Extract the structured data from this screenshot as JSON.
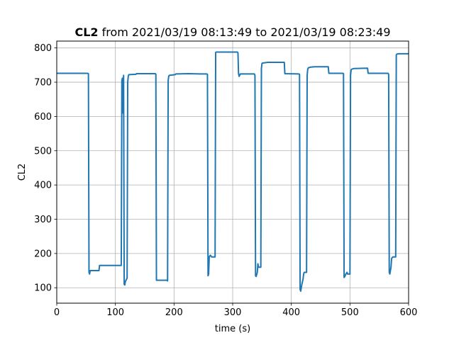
{
  "chart_data": {
    "type": "line",
    "title": {
      "bold": "CL2",
      "rest": " from 2021/03/19 08:13:49 to 2021/03/19 08:23:49"
    },
    "xlabel": "time (s)",
    "ylabel": "CL2",
    "xlim": [
      0,
      600
    ],
    "ylim": [
      55,
      820
    ],
    "xticks": [
      0,
      100,
      200,
      300,
      400,
      500,
      600
    ],
    "yticks": [
      100,
      200,
      300,
      400,
      500,
      600,
      700,
      800
    ],
    "grid": true,
    "series": [
      {
        "color": "#1f77b4",
        "points": [
          [
            0,
            726
          ],
          [
            52,
            726
          ],
          [
            54,
            725
          ],
          [
            55,
            145
          ],
          [
            56,
            140
          ],
          [
            57,
            150
          ],
          [
            72,
            150
          ],
          [
            73,
            165
          ],
          [
            110,
            165
          ],
          [
            111,
            705
          ],
          [
            112,
            712
          ],
          [
            113,
            610
          ],
          [
            114,
            720
          ],
          [
            115,
            110
          ],
          [
            116,
            108
          ],
          [
            117,
            118
          ],
          [
            119,
            125
          ],
          [
            120,
            128
          ],
          [
            121,
            700
          ],
          [
            122,
            718
          ],
          [
            123,
            722
          ],
          [
            135,
            723
          ],
          [
            136,
            725
          ],
          [
            168,
            725
          ],
          [
            169,
            723
          ],
          [
            170,
            122
          ],
          [
            188,
            122
          ],
          [
            189,
            120
          ],
          [
            190,
            705
          ],
          [
            191,
            718
          ],
          [
            192,
            720
          ],
          [
            202,
            722
          ],
          [
            203,
            724
          ],
          [
            225,
            725
          ],
          [
            245,
            724
          ],
          [
            256,
            724
          ],
          [
            257,
            723
          ],
          [
            258,
            135
          ],
          [
            259,
            140
          ],
          [
            260,
            190
          ],
          [
            262,
            195
          ],
          [
            264,
            190
          ],
          [
            270,
            190
          ],
          [
            271,
            787
          ],
          [
            272,
            788
          ],
          [
            308,
            788
          ],
          [
            309,
            786
          ],
          [
            310,
            725
          ],
          [
            311,
            717
          ],
          [
            313,
            724
          ],
          [
            337,
            724
          ],
          [
            338,
            720
          ],
          [
            339,
            135
          ],
          [
            340,
            133
          ],
          [
            342,
            145
          ],
          [
            343,
            170
          ],
          [
            344,
            160
          ],
          [
            348,
            160
          ],
          [
            349,
            740
          ],
          [
            350,
            755
          ],
          [
            351,
            756
          ],
          [
            360,
            758
          ],
          [
            388,
            758
          ],
          [
            389,
            725
          ],
          [
            413,
            724
          ],
          [
            414,
            723
          ],
          [
            415,
            95
          ],
          [
            416,
            90
          ],
          [
            418,
            110
          ],
          [
            420,
            125
          ],
          [
            421,
            140
          ],
          [
            422,
            145
          ],
          [
            426,
            145
          ],
          [
            427,
            720
          ],
          [
            428,
            738
          ],
          [
            429,
            742
          ],
          [
            433,
            744
          ],
          [
            440,
            745
          ],
          [
            463,
            745
          ],
          [
            464,
            726
          ],
          [
            488,
            726
          ],
          [
            489,
            725
          ],
          [
            490,
            130
          ],
          [
            491,
            132
          ],
          [
            493,
            140
          ],
          [
            495,
            145
          ],
          [
            496,
            140
          ],
          [
            500,
            140
          ],
          [
            501,
            720
          ],
          [
            502,
            736
          ],
          [
            503,
            738
          ],
          [
            507,
            740
          ],
          [
            530,
            741
          ],
          [
            531,
            726
          ],
          [
            565,
            726
          ],
          [
            566,
            723
          ],
          [
            567,
            145
          ],
          [
            568,
            140
          ],
          [
            570,
            160
          ],
          [
            571,
            185
          ],
          [
            573,
            190
          ],
          [
            578,
            190
          ],
          [
            579,
            780
          ],
          [
            580,
            782
          ],
          [
            583,
            783
          ],
          [
            600,
            783
          ]
        ]
      }
    ]
  }
}
